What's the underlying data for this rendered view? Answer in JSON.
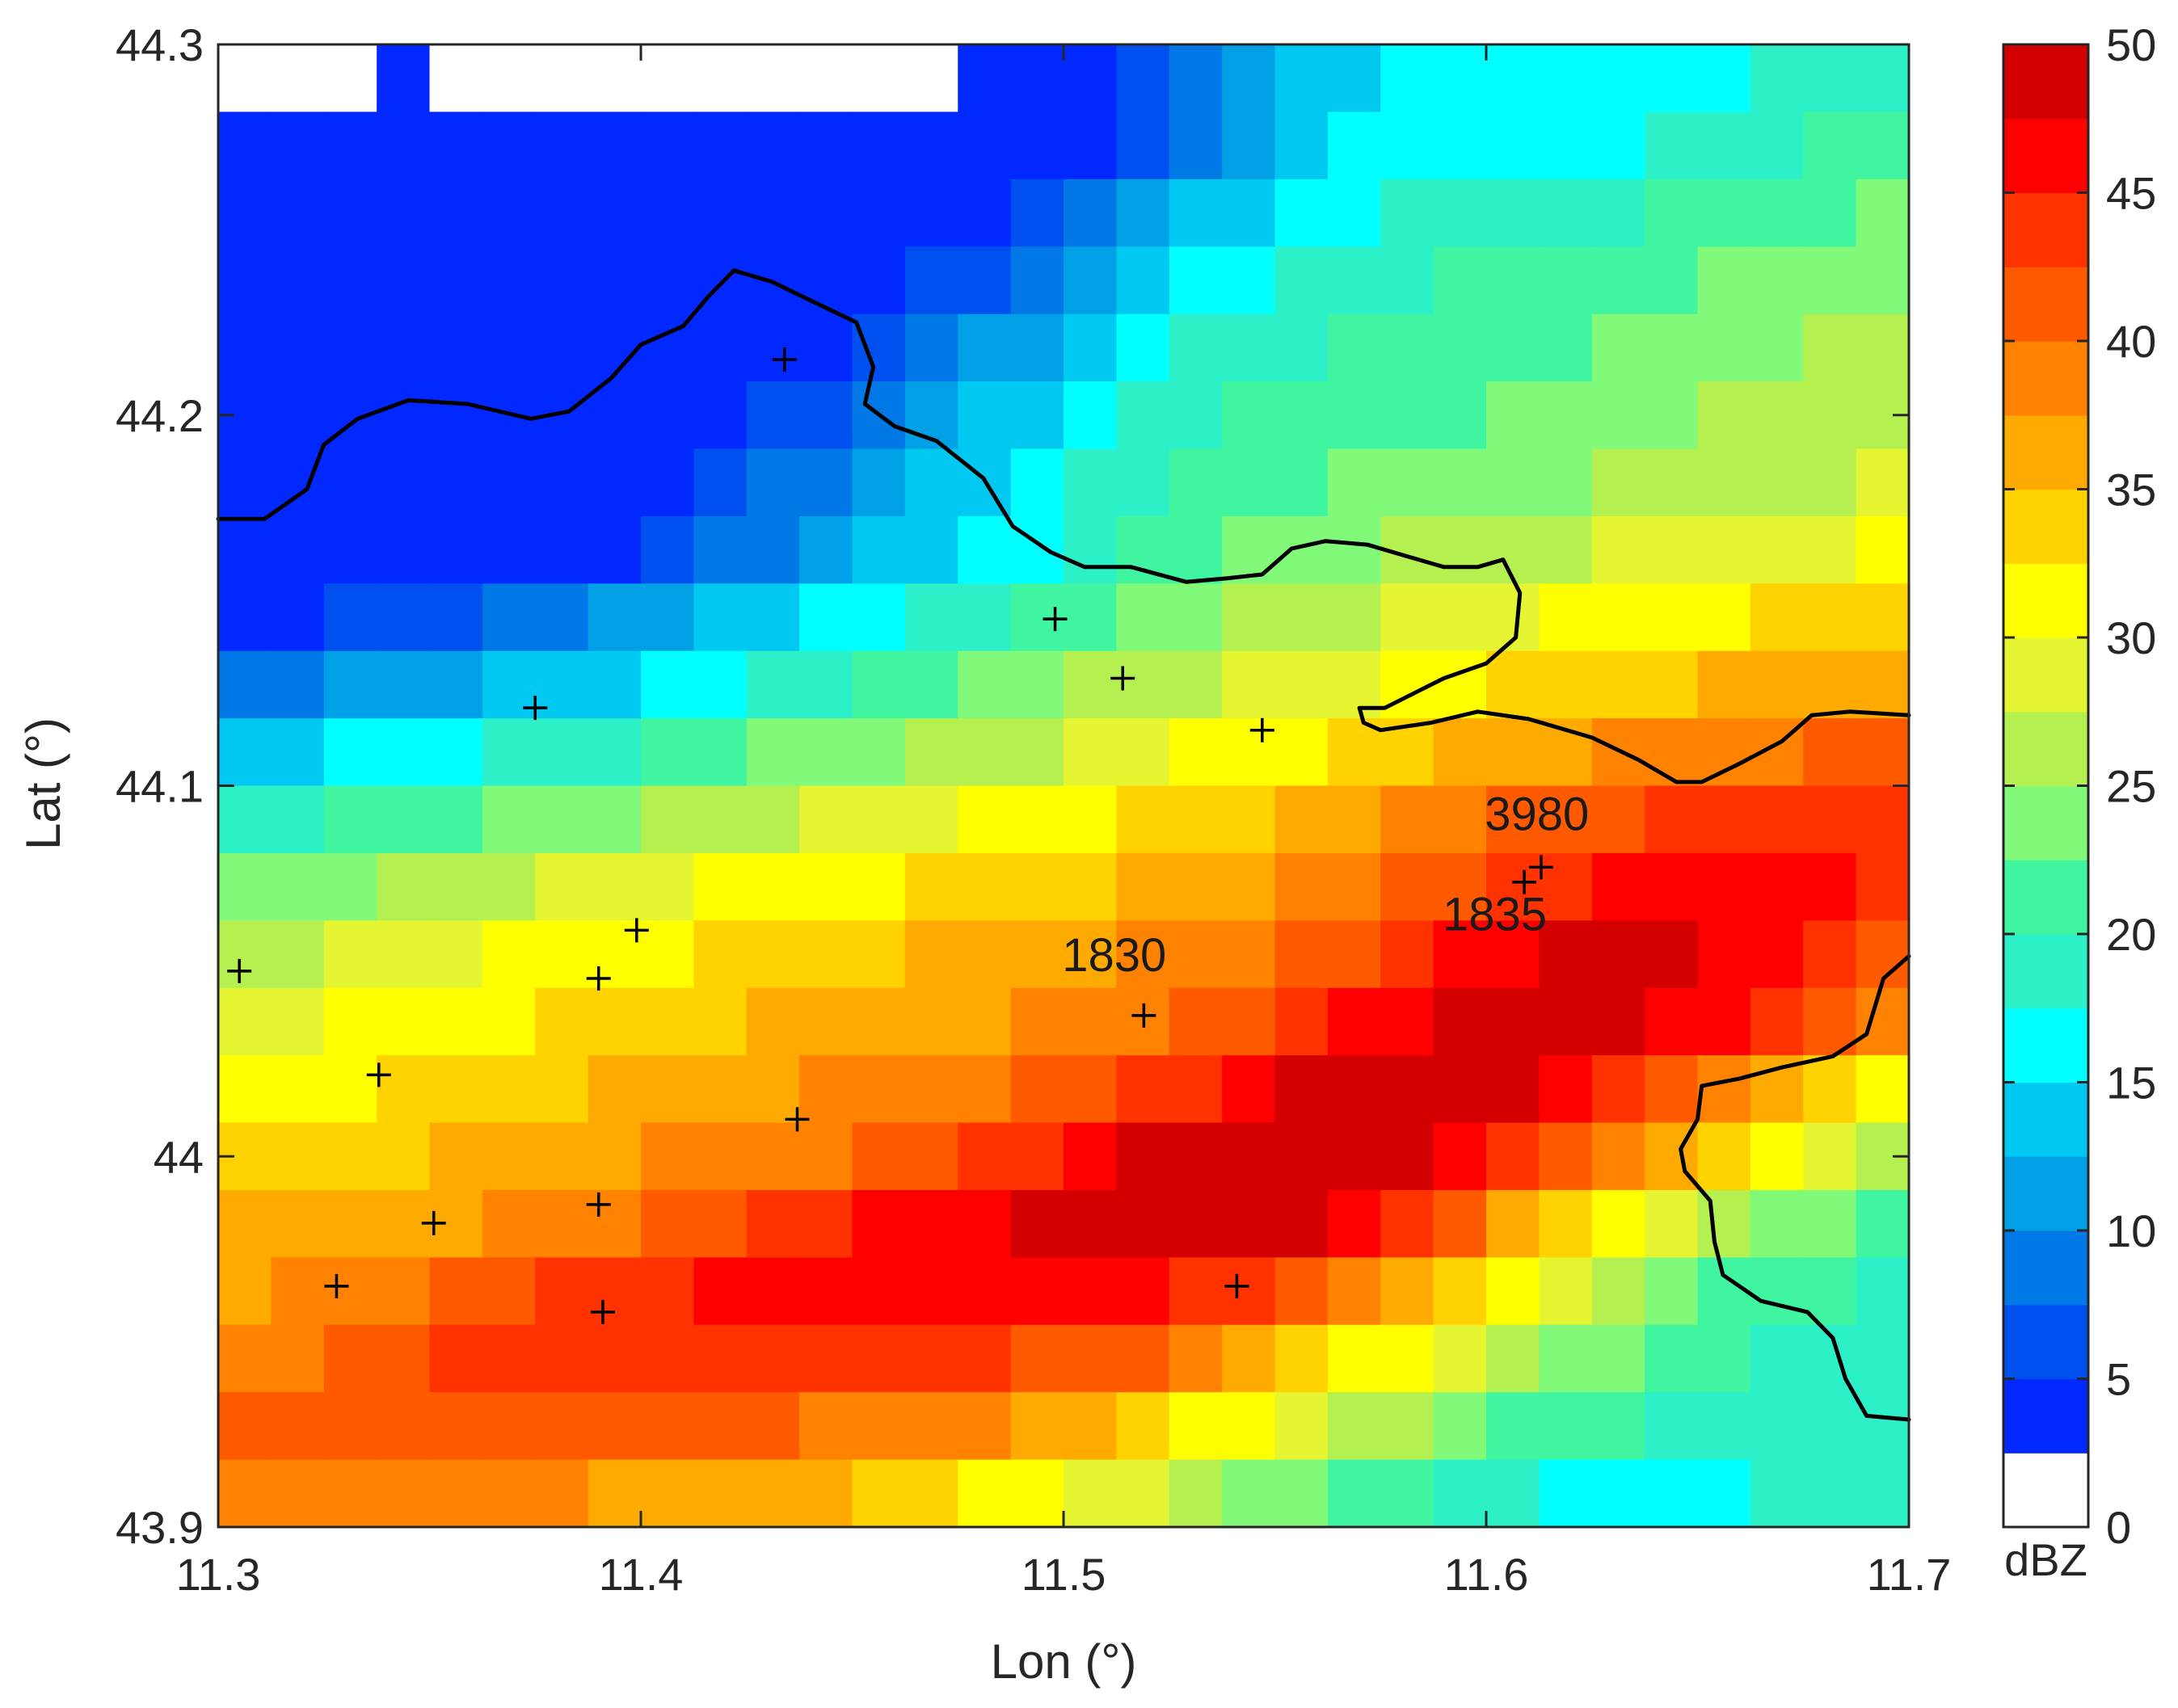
{
  "chart_data": {
    "type": "heatmap",
    "title": "",
    "xlabel": "Lon  (°)",
    "ylabel": "Lat  (°)",
    "xlim": [
      11.3,
      11.7
    ],
    "ylim": [
      43.9,
      44.3
    ],
    "xticks": [
      "11.3",
      "11.4",
      "11.5",
      "11.6",
      "11.7"
    ],
    "xtick_values": [
      11.3,
      11.4,
      11.5,
      11.6,
      11.7
    ],
    "yticks": [
      "43.9",
      "44",
      "44.1",
      "44.2",
      "44.3"
    ],
    "ytick_values": [
      43.9,
      44.0,
      44.1,
      44.2,
      44.3
    ],
    "colorbar": {
      "label": "dBZ",
      "range": [
        0,
        50
      ],
      "ticks": [
        "0",
        "5",
        "10",
        "15",
        "20",
        "25",
        "30",
        "35",
        "40",
        "45",
        "50"
      ],
      "tick_values": [
        0,
        5,
        10,
        15,
        20,
        25,
        30,
        35,
        40,
        45,
        50
      ],
      "colors": [
        "#ffffff",
        "#0028ff",
        "#0050f0",
        "#0078e6",
        "#00a0e6",
        "#00c8f0",
        "#00ffff",
        "#2bf0c8",
        "#40f5a0",
        "#80fa78",
        "#b4f050",
        "#e6f532",
        "#ffff00",
        "#ffd200",
        "#ffaa00",
        "#ff8200",
        "#ff5a00",
        "#ff3200",
        "#ff0000",
        "#d20000"
      ]
    },
    "reflectivity_dbz": [
      [
        0,
        0,
        0,
        2.6,
        0,
        0,
        0,
        0,
        0,
        0,
        0,
        0,
        0,
        0,
        2.6,
        2.6,
        2.6,
        5.5,
        7.8,
        10.2,
        12.5,
        14.8,
        15.6,
        16.4,
        16.4,
        16.4,
        16.4,
        17.2,
        17.2,
        18.0,
        18.8,
        19.6
      ],
      [
        2.6,
        2.6,
        2.6,
        2.6,
        2.6,
        2.6,
        2.6,
        2.6,
        2.6,
        2.6,
        2.6,
        2.6,
        2.6,
        2.6,
        2.6,
        2.6,
        4.8,
        7.0,
        9.3,
        11.5,
        13.8,
        16.0,
        16.4,
        17.2,
        17.2,
        17.2,
        17.2,
        18.0,
        18.7,
        19.5,
        20.2,
        21.0
      ],
      [
        2.6,
        2.6,
        2.6,
        2.6,
        2.6,
        2.6,
        2.6,
        2.6,
        2.6,
        2.6,
        2.6,
        2.6,
        2.6,
        2.6,
        4.1,
        6.2,
        8.4,
        10.5,
        12.6,
        14.8,
        16.9,
        17.2,
        18.0,
        18.6,
        18.6,
        18.6,
        19.3,
        20.0,
        20.6,
        21.3,
        22.0,
        22.6
      ],
      [
        2.6,
        2.6,
        2.6,
        2.6,
        2.6,
        2.6,
        2.6,
        2.6,
        2.6,
        2.6,
        2.6,
        2.6,
        3.4,
        5.4,
        7.4,
        9.4,
        11.4,
        13.4,
        15.4,
        17.4,
        18.0,
        18.8,
        19.4,
        20.0,
        20.0,
        20.7,
        21.3,
        21.9,
        22.5,
        23.1,
        23.8,
        24.4
      ],
      [
        2.6,
        2.6,
        2.6,
        2.6,
        2.6,
        2.6,
        2.6,
        2.6,
        2.6,
        2.6,
        2.6,
        4.6,
        6.5,
        8.4,
        10.2,
        12.1,
        14.0,
        15.8,
        17.7,
        18.6,
        19.4,
        20.0,
        20.6,
        21.1,
        21.7,
        22.3,
        22.9,
        23.4,
        24.0,
        24.6,
        25.1,
        25.7
      ],
      [
        2.6,
        2.6,
        2.6,
        2.6,
        2.6,
        2.6,
        2.6,
        2.6,
        2.6,
        3.8,
        5.6,
        7.3,
        9.1,
        10.8,
        12.6,
        14.3,
        16.1,
        17.8,
        19.2,
        20.0,
        20.8,
        21.3,
        21.9,
        22.4,
        23.0,
        23.5,
        24.1,
        24.6,
        25.2,
        25.7,
        26.3,
        26.8
      ],
      [
        2.6,
        2.6,
        2.6,
        2.6,
        2.6,
        2.6,
        2.6,
        3.1,
        4.8,
        6.4,
        8.1,
        9.7,
        11.4,
        13.0,
        14.7,
        16.3,
        18.0,
        19.3,
        20.6,
        21.4,
        22.1,
        22.6,
        23.1,
        23.6,
        24.2,
        24.7,
        25.2,
        25.7,
        26.3,
        26.8,
        27.3,
        27.8
      ],
      [
        2.6,
        2.6,
        2.6,
        2.6,
        2.6,
        2.6,
        3.0,
        4.6,
        6.2,
        7.8,
        9.4,
        11.0,
        12.6,
        14.2,
        15.8,
        17.4,
        19.0,
        20.3,
        21.5,
        22.6,
        23.5,
        24.3,
        25.0,
        25.7,
        26.3,
        26.9,
        27.5,
        28.1,
        28.7,
        29.3,
        29.9,
        30.5
      ],
      [
        4.0,
        4.8,
        5.6,
        6.4,
        7.2,
        8.0,
        8.8,
        10.0,
        11.4,
        12.8,
        14.2,
        15.6,
        17.0,
        18.4,
        19.8,
        21.0,
        22.2,
        23.2,
        24.2,
        25.1,
        26.0,
        26.9,
        27.8,
        28.6,
        29.4,
        30.2,
        30.9,
        31.6,
        32.2,
        32.8,
        33.4,
        34.0
      ],
      [
        9.0,
        9.8,
        10.6,
        11.4,
        12.2,
        13.0,
        13.8,
        14.8,
        16.0,
        17.2,
        18.4,
        19.6,
        20.8,
        21.9,
        23.0,
        24.0,
        25.0,
        25.9,
        26.8,
        27.7,
        28.7,
        29.8,
        30.9,
        31.8,
        32.6,
        33.4,
        34.1,
        34.8,
        35.4,
        36.0,
        36.6,
        37.2
      ],
      [
        14.0,
        14.8,
        15.6,
        16.4,
        17.2,
        18.0,
        18.8,
        19.6,
        20.6,
        21.6,
        22.6,
        23.6,
        24.6,
        25.5,
        26.4,
        27.3,
        28.1,
        29.0,
        30.0,
        31.0,
        32.1,
        33.2,
        34.5,
        35.5,
        36.4,
        37.2,
        37.9,
        38.6,
        39.2,
        39.8,
        40.4,
        41.0
      ],
      [
        19.0,
        19.8,
        20.6,
        21.4,
        22.2,
        23.0,
        23.8,
        24.6,
        25.4,
        26.2,
        27.0,
        27.8,
        28.6,
        29.4,
        30.2,
        31.0,
        31.8,
        32.6,
        33.4,
        34.2,
        35.2,
        36.3,
        37.6,
        38.9,
        40.1,
        41.0,
        41.8,
        42.5,
        43.1,
        43.7,
        44.3,
        44.9
      ],
      [
        23.0,
        23.8,
        24.6,
        25.4,
        26.2,
        27.0,
        27.8,
        28.6,
        29.4,
        30.2,
        31.0,
        31.6,
        32.2,
        32.8,
        33.4,
        34.0,
        34.6,
        35.2,
        35.8,
        36.6,
        37.6,
        38.8,
        40.2,
        41.6,
        43.0,
        44.2,
        45.2,
        46.0,
        46.4,
        46.0,
        45.4,
        44.6
      ],
      [
        26.0,
        26.8,
        27.6,
        28.4,
        29.2,
        30.0,
        30.8,
        31.5,
        32.2,
        32.9,
        33.6,
        34.2,
        34.8,
        35.4,
        36.0,
        36.6,
        37.2,
        37.8,
        38.6,
        39.6,
        40.8,
        42.2,
        43.8,
        45.4,
        46.8,
        48.0,
        48.6,
        48.4,
        47.4,
        45.8,
        44.0,
        42.0
      ],
      [
        29.0,
        29.6,
        30.2,
        30.8,
        31.4,
        32.0,
        32.6,
        33.2,
        33.8,
        34.4,
        35.0,
        35.6,
        36.2,
        36.8,
        37.4,
        38.0,
        38.8,
        39.8,
        41.0,
        42.4,
        44.0,
        45.6,
        47.2,
        48.6,
        49.4,
        49.6,
        48.8,
        47.2,
        45.0,
        42.6,
        40.2,
        38.0
      ],
      [
        31.0,
        31.6,
        32.2,
        32.8,
        33.4,
        34.0,
        34.6,
        35.2,
        35.8,
        36.4,
        37.0,
        37.6,
        38.2,
        38.8,
        39.6,
        40.6,
        41.8,
        43.2,
        44.8,
        46.4,
        48.0,
        49.2,
        49.6,
        49.2,
        47.8,
        45.8,
        43.4,
        40.8,
        38.2,
        35.6,
        33.2,
        31.0
      ],
      [
        33.0,
        33.6,
        34.2,
        34.8,
        35.4,
        36.0,
        36.6,
        37.2,
        37.8,
        38.4,
        39.0,
        39.8,
        40.8,
        42.0,
        43.4,
        44.8,
        46.2,
        47.6,
        48.8,
        49.6,
        49.8,
        49.2,
        47.6,
        45.4,
        43.0,
        40.4,
        37.8,
        35.2,
        32.6,
        30.2,
        28.0,
        26.0
      ],
      [
        35.0,
        35.6,
        36.2,
        36.8,
        37.4,
        38.0,
        38.6,
        39.4,
        40.4,
        41.6,
        42.8,
        44.0,
        45.2,
        46.4,
        47.4,
        48.2,
        48.8,
        49.2,
        49.4,
        49.0,
        47.6,
        45.4,
        42.8,
        40.0,
        37.2,
        34.4,
        31.8,
        29.2,
        26.8,
        24.6,
        22.6,
        21.0
      ],
      [
        37.0,
        37.6,
        38.4,
        39.4,
        40.6,
        41.8,
        43.0,
        44.0,
        44.8,
        45.4,
        46.0,
        46.4,
        46.8,
        47.0,
        47.2,
        47.0,
        46.6,
        45.8,
        44.6,
        43.0,
        41.0,
        38.6,
        36.0,
        33.4,
        30.8,
        28.4,
        26.2,
        24.2,
        22.4,
        21.0,
        20.0,
        19.4
      ],
      [
        39.0,
        39.8,
        40.8,
        41.8,
        42.8,
        43.6,
        44.2,
        44.6,
        44.8,
        44.8,
        44.6,
        44.4,
        44.0,
        43.6,
        43.0,
        42.2,
        41.2,
        40.0,
        38.4,
        36.6,
        34.6,
        32.4,
        30.2,
        28.0,
        26.0,
        24.2,
        22.6,
        21.2,
        20.2,
        19.6,
        19.2,
        19.0
      ],
      [
        40.0,
        40.6,
        41.2,
        41.6,
        41.8,
        41.8,
        41.6,
        41.2,
        40.8,
        40.4,
        40.0,
        39.6,
        39.0,
        38.4,
        37.6,
        36.6,
        35.4,
        34.0,
        32.4,
        30.6,
        28.8,
        27.0,
        25.2,
        23.6,
        22.2,
        21.0,
        20.0,
        19.2,
        18.6,
        18.4,
        18.4,
        18.6
      ],
      [
        39.0,
        39.2,
        39.2,
        39.0,
        38.6,
        38.2,
        37.8,
        37.4,
        37.0,
        36.6,
        36.0,
        35.4,
        34.6,
        33.6,
        32.4,
        31.0,
        29.4,
        27.8,
        26.2,
        24.6,
        23.0,
        21.6,
        20.2,
        18.8,
        17.6,
        16.8,
        16.4,
        16.6,
        17.0,
        17.6,
        18.2,
        18.8
      ]
    ],
    "station_markers": [
      {
        "lon": 11.434,
        "lat": 44.215
      },
      {
        "lon": 11.375,
        "lat": 44.121
      },
      {
        "lon": 11.498,
        "lat": 44.145
      },
      {
        "lon": 11.514,
        "lat": 44.129
      },
      {
        "lon": 11.547,
        "lat": 44.115
      },
      {
        "lon": 11.305,
        "lat": 44.05
      },
      {
        "lon": 11.399,
        "lat": 44.061
      },
      {
        "lon": 11.39,
        "lat": 44.048
      },
      {
        "lon": 11.338,
        "lat": 44.022
      },
      {
        "lon": 11.437,
        "lat": 44.01
      },
      {
        "lon": 11.39,
        "lat": 43.987
      },
      {
        "lon": 11.351,
        "lat": 43.982
      },
      {
        "lon": 11.328,
        "lat": 43.965
      },
      {
        "lon": 11.391,
        "lat": 43.958
      },
      {
        "lon": 11.541,
        "lat": 43.965
      },
      {
        "lon": 11.519,
        "lat": 44.038
      },
      {
        "lon": 11.609,
        "lat": 44.074
      },
      {
        "lon": 11.613,
        "lat": 44.078
      }
    ],
    "annotations": [
      {
        "text": "1830",
        "lon": 11.512,
        "lat": 44.05
      },
      {
        "text": "3980",
        "lon": 11.612,
        "lat": 44.088
      },
      {
        "text": "1835",
        "lon": 11.602,
        "lat": 44.061
      }
    ],
    "boundaries": [
      [
        [
          11.3,
          44.172
        ],
        [
          11.311,
          44.172
        ],
        [
          11.321,
          44.18
        ],
        [
          11.325,
          44.192
        ],
        [
          11.333,
          44.199
        ],
        [
          11.345,
          44.204
        ],
        [
          11.359,
          44.203
        ],
        [
          11.374,
          44.199
        ],
        [
          11.383,
          44.201
        ],
        [
          11.393,
          44.21
        ],
        [
          11.4,
          44.219
        ],
        [
          11.41,
          44.224
        ],
        [
          11.416,
          44.232
        ],
        [
          11.422,
          44.239
        ],
        [
          11.431,
          44.236
        ],
        [
          11.44,
          44.231
        ],
        [
          11.451,
          44.225
        ],
        [
          11.455,
          44.213
        ],
        [
          11.453,
          44.203
        ],
        [
          11.46,
          44.197
        ],
        [
          11.47,
          44.193
        ],
        [
          11.481,
          44.183
        ],
        [
          11.488,
          44.17
        ],
        [
          11.497,
          44.163
        ],
        [
          11.505,
          44.159
        ],
        [
          11.516,
          44.159
        ],
        [
          11.529,
          44.155
        ],
        [
          11.539,
          44.156
        ],
        [
          11.547,
          44.157
        ],
        [
          11.554,
          44.164
        ],
        [
          11.562,
          44.166
        ],
        [
          11.572,
          44.165
        ],
        [
          11.581,
          44.162
        ],
        [
          11.59,
          44.159
        ],
        [
          11.598,
          44.159
        ],
        [
          11.604,
          44.161
        ],
        [
          11.608,
          44.152
        ],
        [
          11.607,
          44.14
        ],
        [
          11.6,
          44.133
        ],
        [
          11.59,
          44.129
        ],
        [
          11.583,
          44.125
        ],
        [
          11.576,
          44.121
        ],
        [
          11.57,
          44.121
        ],
        [
          11.571,
          44.117
        ],
        [
          11.575,
          44.115
        ],
        [
          11.587,
          44.117
        ],
        [
          11.598,
          44.12
        ],
        [
          11.61,
          44.118
        ],
        [
          11.625,
          44.113
        ],
        [
          11.636,
          44.107
        ],
        [
          11.645,
          44.101
        ],
        [
          11.651,
          44.101
        ],
        [
          11.66,
          44.106
        ],
        [
          11.67,
          44.112
        ],
        [
          11.677,
          44.119
        ],
        [
          11.686,
          44.12
        ],
        [
          11.7,
          44.119
        ]
      ],
      [
        [
          11.7,
          44.054
        ],
        [
          11.694,
          44.048
        ],
        [
          11.69,
          44.033
        ],
        [
          11.682,
          44.027
        ],
        [
          11.67,
          44.024
        ],
        [
          11.66,
          44.021
        ],
        [
          11.651,
          44.019
        ],
        [
          11.65,
          44.01
        ],
        [
          11.646,
          44.002
        ],
        [
          11.647,
          43.996
        ],
        [
          11.653,
          43.988
        ],
        [
          11.654,
          43.977
        ],
        [
          11.656,
          43.968
        ],
        [
          11.665,
          43.961
        ],
        [
          11.676,
          43.958
        ],
        [
          11.682,
          43.951
        ],
        [
          11.685,
          43.94
        ],
        [
          11.69,
          43.93
        ],
        [
          11.7,
          43.929
        ]
      ]
    ]
  }
}
